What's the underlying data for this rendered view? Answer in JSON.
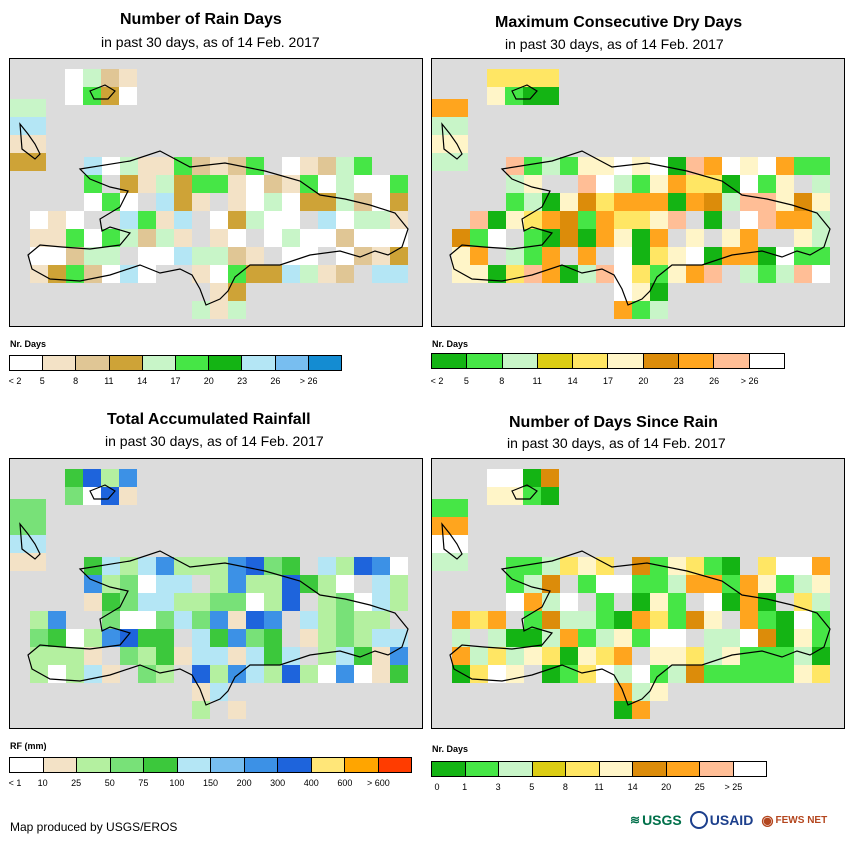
{
  "panels": [
    {
      "title": "Number of Rain Days",
      "subtitle": "in past 30 days, as of 14 Feb. 2017",
      "legend_title": "Nr. Days",
      "legend_colors": [
        "#ffffff",
        "#f3e2c6",
        "#e0c695",
        "#cea337",
        "#c8f5c8",
        "#46e646",
        "#14b414",
        "#b4e6f5",
        "#78bef0",
        "#148cd2"
      ],
      "legend_ticks": [
        "< 2",
        "5",
        "8",
        "11",
        "14",
        "17",
        "20",
        "23",
        "26",
        "> 26"
      ]
    },
    {
      "title": "Maximum Consecutive Dry Days",
      "subtitle": "in past 30 days, as of 14 Feb. 2017",
      "legend_title": "Nr. Days",
      "legend_colors": [
        "#14b414",
        "#46e646",
        "#c8f5c8",
        "#dccd14",
        "#ffe664",
        "#fff5c8",
        "#dc8c0a",
        "#ffa51e",
        "#ffbe96",
        "#ffffff"
      ],
      "legend_ticks": [
        "< 2",
        "5",
        "8",
        "11",
        "14",
        "17",
        "20",
        "23",
        "26",
        "> 26"
      ]
    },
    {
      "title": "Total Accumulated Rainfall",
      "subtitle": "in past 30 days, as of 14 Feb. 2017",
      "legend_title": "RF (mm)",
      "legend_colors": [
        "#ffffff",
        "#f3e2c6",
        "#b4f0a0",
        "#78e178",
        "#3cc83c",
        "#b4e6f5",
        "#78bef0",
        "#3c91e6",
        "#1e64dc",
        "#ffe678",
        "#ffa500",
        "#ff3c00"
      ],
      "legend_ticks": [
        "< 1",
        "10",
        "25",
        "50",
        "75",
        "100",
        "150",
        "200",
        "300",
        "400",
        "600",
        "> 600"
      ]
    },
    {
      "title": "Number of Days Since Rain",
      "subtitle": "in past 30 days, as of 14 Feb. 2017",
      "legend_title": "Nr. Days",
      "legend_colors": [
        "#14b414",
        "#46e646",
        "#c8f5c8",
        "#dccd14",
        "#ffe664",
        "#fff5c8",
        "#dc8c0a",
        "#ffa51e",
        "#ffbe96",
        "#ffffff"
      ],
      "legend_ticks": [
        "0",
        "1",
        "3",
        "5",
        "8",
        "11",
        "14",
        "20",
        "25",
        "> 25"
      ]
    }
  ],
  "footer": "Map produced by USGS/EROS",
  "logos": [
    "USGS",
    "USAID",
    "FEWS NET"
  ]
}
